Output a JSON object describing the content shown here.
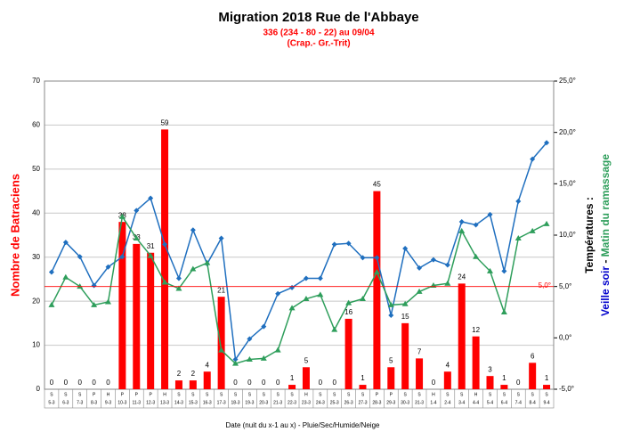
{
  "chart_data": {
    "type": "bar_line",
    "title": "Migration 2018  Rue de l'Abbaye",
    "subtitle": "336 (234 - 80 - 22) au 09/04",
    "subtitle2": "(Crap.- Gr.-Trit)",
    "xlabel": "Date (nuit du x-1 au x) - Pluie/Sec/Humide/Neige",
    "ylabel": "Nombre de Batraciens",
    "y2label": "Températures :",
    "y2label_separator": "-",
    "categories": [
      "5-3",
      "6-3",
      "7-3",
      "8-3",
      "9-3",
      "10-3",
      "11-3",
      "12-3",
      "13-3",
      "14-3",
      "15-3",
      "16-3",
      "17-3",
      "18-3",
      "19-3",
      "20-3",
      "21-3",
      "22-3",
      "23-3",
      "24-3",
      "25-3",
      "26-3",
      "27-3",
      "28-3",
      "29-3",
      "30-3",
      "31-3",
      "1-4",
      "2-4",
      "3-4",
      "4-4",
      "5-4",
      "6-4",
      "7-4",
      "8-4",
      "9-4"
    ],
    "weather": [
      "S",
      "S",
      "S",
      "P",
      "H",
      "P",
      "P",
      "P",
      "H",
      "S",
      "S",
      "S",
      "S",
      "S",
      "S",
      "S",
      "S",
      "S",
      "H",
      "S",
      "S",
      "S",
      "S",
      "P",
      "P",
      "S",
      "S",
      "H",
      "S",
      "S",
      "H",
      "S",
      "S",
      "S",
      "S",
      "S"
    ],
    "series": [
      {
        "type": "bar",
        "color": "#ff0000",
        "values": [
          0,
          0,
          0,
          0,
          0,
          38,
          33,
          31,
          59,
          2,
          2,
          4,
          21,
          0,
          0,
          0,
          0,
          1,
          5,
          0,
          0,
          16,
          1,
          45,
          5,
          15,
          7,
          0,
          4,
          24,
          12,
          3,
          1,
          0,
          6,
          1
        ]
      },
      {
        "type": "line",
        "name": "Veille soir",
        "color": "#1f6fbf",
        "label_color": "#0000cc",
        "marker": "diamond",
        "axis": "y2",
        "values": [
          6.4,
          9.3,
          7.9,
          5.1,
          6.9,
          7.9,
          12.4,
          13.6,
          9.1,
          5.8,
          10.5,
          7.2,
          9.7,
          -2.1,
          -0.1,
          1.1,
          4.3,
          4.9,
          5.8,
          5.8,
          9.1,
          9.2,
          7.8,
          7.8,
          2.2,
          8.7,
          6.8,
          7.6,
          7.1,
          11.3,
          11.0,
          12.0,
          6.5,
          13.3,
          17.4,
          19.0
        ]
      },
      {
        "type": "line",
        "name": "Matin du ramassage",
        "color": "#2e9e5b",
        "label_color": "#2e9e5b",
        "marker": "triangle",
        "axis": "y2",
        "values": [
          3.2,
          5.9,
          5.0,
          3.2,
          3.5,
          11.8,
          9.7,
          8.0,
          5.4,
          4.8,
          6.7,
          7.3,
          -1.2,
          -2.5,
          -2.1,
          -2.0,
          -1.2,
          2.9,
          3.8,
          4.2,
          0.8,
          3.4,
          3.8,
          6.4,
          3.2,
          3.3,
          4.5,
          5.1,
          5.3,
          10.4,
          7.9,
          6.5,
          2.5,
          9.7,
          10.4,
          11.1
        ]
      }
    ],
    "ylim": [
      0,
      70
    ],
    "yticks": [
      0,
      10,
      20,
      30,
      40,
      50,
      60,
      70
    ],
    "y2lim": [
      -5,
      25
    ],
    "y2ticks": [
      {
        "value": -5,
        "label": "-5,0°"
      },
      {
        "value": 0,
        "label": "0,0°"
      },
      {
        "value": 5,
        "label": "5,0°"
      },
      {
        "value": 10,
        "label": "10,0°"
      },
      {
        "value": 15,
        "label": "15,0°"
      },
      {
        "value": 20,
        "label": "20,0°"
      },
      {
        "value": 25,
        "label": "25,0°"
      }
    ],
    "reference": {
      "value": 5,
      "label": "5,0°",
      "axis": "y2",
      "color": "#ff0000"
    },
    "grid": true
  }
}
